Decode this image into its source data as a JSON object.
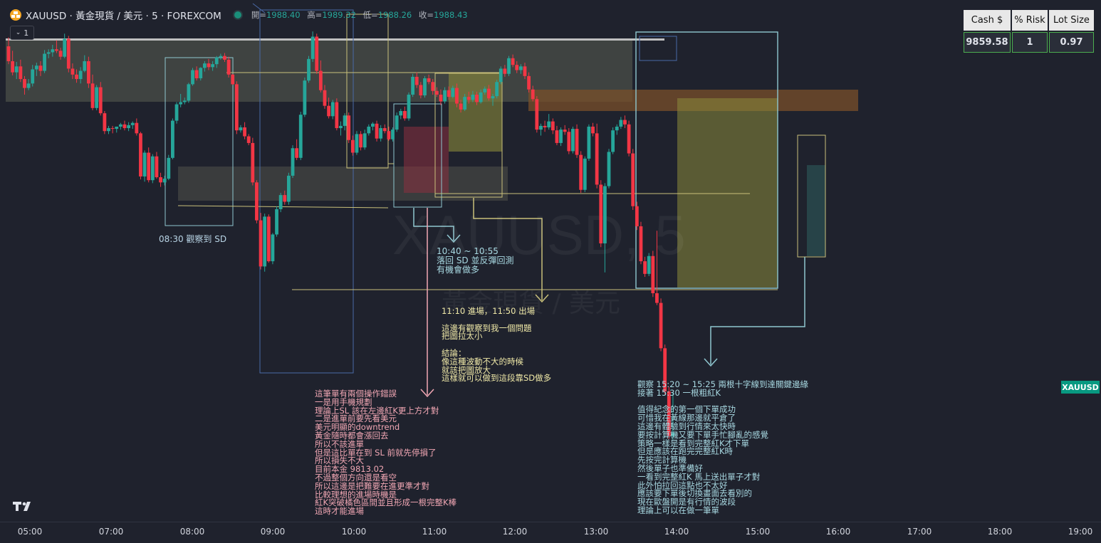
{
  "header": {
    "title": "XAUUSD · 黃金現貨 / 美元 · 5 · FOREXCOM",
    "open_label": "開=",
    "open_value": "1988.40",
    "high_label": "高=",
    "high_value": "1989.32",
    "low_label": "低=",
    "low_value": "1988.26",
    "close_label": "收=",
    "close_value": "1988.43",
    "collapse_badge": "1"
  },
  "risk_table": {
    "headers": [
      "Cash $",
      "% Risk",
      "Lot Size"
    ],
    "values": [
      "9859.58",
      "1",
      "0.97"
    ]
  },
  "watermark": {
    "symbol": "XAUUSD, 5",
    "description": "黃金現貨 / 美元"
  },
  "price_tag": "XAUUSD",
  "x_axis": [
    "05:00",
    "07:00",
    "08:00",
    "09:00",
    "10:00",
    "11:00",
    "12:00",
    "13:00",
    "14:00",
    "15:00",
    "16:00",
    "17:00",
    "18:00",
    "19:00"
  ],
  "annotations": {
    "a0830": "08:30 觀察到 SD",
    "a1040": "10:40 ~ 10:55\n落回 SD 並反彈回測\n有機會做多",
    "a1110": "11:10 進場，11:50 出場\n\n這邊有觀察到我一個問題\n把圖拉太小\n\n結論：\n像這種波動不大的時候\n就該把圖放大\n這樣就可以做到這段靠SD做多",
    "mistakes": "這筆單有兩個操作錯誤\n一是用手機規劃\n理論上SL 該在左邊紅K更上方才對\n二是進單前要先看美元\n美元明顯的downtrend\n黃金隨時都會漲回去\n所以不該進單\n但是這比單在到 SL 前就先停損了\n所以損失不大\n目前本金 9813.02\n不過整個方向還是看空\n所以這邊是把難要在進更準才對\n比較理想的進場時機是\n紅K突破橘色區間並且形成一根完整K棒\n這時才能進場",
    "a1520": "觀察 15:20 ~ 15:25 兩根十字線到達關鍵邊緣\n接著 15:30 一根粗紅K\n\n值得紀念的第一個下單成功\n可惜我在黃線那邊就平倉了\n這邊有體驗到行情來太快時\n要按計算機又要下單手忙腳亂的感覺\n策略一樣是看到完整紅K才下單\n但是應該在跑完完整紅K時\n先按完計算機\n然後單子也準備好\n一看到完整紅K 馬上送出單子才對\n此外怕拉回這點也不太好\n應該要下單後切換畫面去看別的\n現在歐盤開是有行情的波段\n理論上可以在做一筆單"
  },
  "colors": {
    "background": "#1f222d",
    "up": "#26a69a",
    "down": "#f23645",
    "zone_gray": "#5a5e52",
    "zone_orange": "#7a4f2a",
    "zone_yellow": "#8a8a3a",
    "zone_red": "#8a3040",
    "box_blue": "#4a6aa8",
    "box_cyan": "#8fc7d0",
    "line_yellow": "#c9c07a"
  },
  "candles": [
    [
      1997.6,
      1998.8,
      1995.2,
      1995.6
    ],
    [
      1995.6,
      1997.0,
      1993.7,
      1994.1
    ],
    [
      1994.1,
      1995.5,
      1993.2,
      1994.9
    ],
    [
      1994.9,
      1995.8,
      1992.8,
      1993.2
    ],
    [
      1993.2,
      1993.6,
      1991.1,
      1992.0
    ],
    [
      1992.0,
      1993.2,
      1991.7,
      1992.6
    ],
    [
      1992.6,
      1995.1,
      1992.2,
      1994.5
    ],
    [
      1994.5,
      1995.4,
      1993.6,
      1995.0
    ],
    [
      1995.0,
      1995.6,
      1993.6,
      1994.3
    ],
    [
      1994.3,
      1997.1,
      1994.0,
      1996.6
    ],
    [
      1996.6,
      1997.2,
      1996.0,
      1996.8
    ],
    [
      1996.8,
      1997.8,
      1996.2,
      1997.2
    ],
    [
      1997.2,
      1998.4,
      1996.7,
      1997.0
    ],
    [
      1997.0,
      1997.4,
      1995.8,
      1996.2
    ],
    [
      1996.2,
      1999.3,
      1996.0,
      1998.6
    ],
    [
      1998.6,
      1999.0,
      1994.1,
      1994.6
    ],
    [
      1994.6,
      1995.3,
      1993.2,
      1993.8
    ],
    [
      1993.8,
      1994.5,
      1992.7,
      1993.2
    ],
    [
      1993.2,
      1994.8,
      1992.6,
      1994.3
    ],
    [
      1994.3,
      1996.4,
      1994.1,
      1995.6
    ],
    [
      1995.6,
      1996.2,
      1992.0,
      1992.6
    ],
    [
      1992.6,
      1993.8,
      1989.0,
      1989.3
    ],
    [
      1989.3,
      1992.4,
      1989.0,
      1992.1
    ],
    [
      1992.1,
      1992.8,
      1988.3,
      1988.6
    ],
    [
      1988.6,
      1988.9,
      1985.8,
      1986.2
    ],
    [
      1986.2,
      1986.9,
      1985.8,
      1986.6
    ],
    [
      1986.6,
      1986.9,
      1985.9,
      1986.5
    ],
    [
      1986.5,
      1986.8,
      1986.0,
      1986.8
    ],
    [
      1986.8,
      1987.3,
      1986.4,
      1987.1
    ],
    [
      1987.1,
      1987.6,
      1986.3,
      1986.6
    ],
    [
      1986.6,
      1987.4,
      1986.2,
      1987.0
    ],
    [
      1987.0,
      1987.5,
      1986.5,
      1987.3
    ],
    [
      1987.3,
      1987.9,
      1985.6,
      1985.9
    ],
    [
      1985.9,
      1986.1,
      1979.7,
      1980.1
    ],
    [
      1980.1,
      1983.6,
      1979.4,
      1983.3
    ],
    [
      1983.3,
      1984.0,
      1979.3,
      1979.6
    ],
    [
      1979.6,
      1983.1,
      1979.2,
      1982.8
    ],
    [
      1982.8,
      1983.4,
      1979.8,
      1980.0
    ],
    [
      1980.0,
      1980.6,
      1978.7,
      1979.3
    ],
    [
      1979.3,
      1980.2,
      1978.9,
      1979.8
    ],
    [
      1979.8,
      1983.0,
      1979.6,
      1982.6
    ],
    [
      1982.6,
      1987.9,
      1982.4,
      1987.6
    ],
    [
      1987.6,
      1990.1,
      1987.2,
      1989.8
    ],
    [
      1989.8,
      1991.2,
      1989.4,
      1990.1
    ],
    [
      1990.1,
      1990.7,
      1989.8,
      1990.3
    ],
    [
      1990.3,
      1992.7,
      1990.0,
      1992.5
    ],
    [
      1992.5,
      1994.7,
      1992.3,
      1994.4
    ],
    [
      1994.4,
      1994.9,
      1993.0,
      1993.3
    ],
    [
      1993.3,
      1994.8,
      1993.0,
      1994.7
    ],
    [
      1994.7,
      1995.6,
      1994.2,
      1995.3
    ],
    [
      1995.3,
      1995.9,
      1994.4,
      1994.8
    ],
    [
      1994.8,
      1995.6,
      1994.3,
      1995.2
    ],
    [
      1995.2,
      1996.3,
      1994.7,
      1996.1
    ],
    [
      1996.1,
      1996.6,
      1995.8,
      1996.3
    ],
    [
      1996.3,
      1996.7,
      1995.5,
      1995.8
    ],
    [
      1995.8,
      1996.2,
      1993.4,
      1993.8
    ],
    [
      1993.8,
      1993.9,
      1992.4,
      1992.5
    ],
    [
      1992.5,
      1992.9,
      1985.8,
      1986.3
    ],
    [
      1986.3,
      1987.0,
      1986.0,
      1986.7
    ],
    [
      1986.7,
      1987.4,
      1985.1,
      1985.5
    ],
    [
      1985.5,
      1985.8,
      1984.3,
      1984.6
    ],
    [
      1984.6,
      1985.3,
      1978.9,
      1979.3
    ],
    [
      1979.3,
      1979.6,
      1973.8,
      1974.2
    ],
    [
      1974.2,
      1975.2,
      1967.6,
      1968.0
    ],
    [
      1968.0,
      1975.1,
      1967.3,
      1974.7
    ],
    [
      1974.7,
      1975.0,
      1968.5,
      1968.7
    ],
    [
      1968.7,
      1972.5,
      1968.3,
      1972.3
    ],
    [
      1972.3,
      1976.1,
      1972.0,
      1975.7
    ],
    [
      1975.7,
      1977.9,
      1975.3,
      1977.6
    ],
    [
      1977.6,
      1978.2,
      1976.3,
      1976.7
    ],
    [
      1976.7,
      1980.6,
      1976.3,
      1980.2
    ],
    [
      1980.2,
      1984.3,
      1979.9,
      1983.9
    ],
    [
      1983.9,
      1985.1,
      1982.3,
      1982.6
    ],
    [
      1982.6,
      1988.8,
      1982.3,
      1988.4
    ],
    [
      1988.4,
      1993.4,
      1988.1,
      1993.0
    ],
    [
      1993.0,
      1996.3,
      1992.7,
      1995.9
    ],
    [
      1995.9,
      1999.6,
      1995.5,
      1998.9
    ],
    [
      1998.9,
      1999.3,
      1993.9,
      1994.3
    ],
    [
      1994.3,
      1995.7,
      1991.4,
      1991.7
    ],
    [
      1991.7,
      1992.4,
      1989.2,
      1989.6
    ],
    [
      1989.6,
      1990.7,
      1987.9,
      1988.2
    ],
    [
      1988.2,
      1990.4,
      1987.8,
      1990.1
    ],
    [
      1990.1,
      1990.6,
      1986.3,
      1986.6
    ],
    [
      1986.6,
      1987.5,
      1985.6,
      1986.9
    ],
    [
      1986.9,
      1988.6,
      1986.3,
      1988.3
    ],
    [
      1988.3,
      1988.7,
      1984.6,
      1985.0
    ],
    [
      1985.0,
      1985.6,
      1982.9,
      1983.3
    ],
    [
      1983.3,
      1986.2,
      1983.0,
      1985.8
    ],
    [
      1985.8,
      1986.2,
      1983.6,
      1984.0
    ],
    [
      1984.0,
      1986.4,
      1983.7,
      1985.9
    ],
    [
      1985.9,
      1987.1,
      1985.6,
      1986.8
    ],
    [
      1986.8,
      1987.4,
      1986.3,
      1987.2
    ],
    [
      1987.2,
      1987.6,
      1984.8,
      1985.2
    ],
    [
      1985.2,
      1987.0,
      1984.8,
      1986.6
    ],
    [
      1986.6,
      1987.1,
      1985.9,
      1986.2
    ],
    [
      1986.2,
      1986.8,
      1984.9,
      1985.1
    ],
    [
      1985.1,
      1986.7,
      1984.8,
      1986.4
    ],
    [
      1986.4,
      1988.7,
      1986.1,
      1988.3
    ],
    [
      1988.3,
      1989.2,
      1987.8,
      1988.9
    ],
    [
      1988.9,
      1989.5,
      1987.6,
      1987.9
    ],
    [
      1987.9,
      1991.4,
      1987.6,
      1991.1
    ],
    [
      1991.1,
      1993.9,
      1990.8,
      1993.5
    ],
    [
      1993.5,
      1994.1,
      1992.0,
      1992.4
    ],
    [
      1992.4,
      1992.8,
      1990.6,
      1991.0
    ],
    [
      1991.0,
      1993.6,
      1990.7,
      1993.3
    ],
    [
      1993.3,
      1993.8,
      1992.5,
      1992.8
    ],
    [
      1992.8,
      1993.2,
      1991.1,
      1991.6
    ],
    [
      1991.6,
      1992.1,
      1990.8,
      1991.1
    ],
    [
      1991.1,
      1991.8,
      1989.7,
      1990.2
    ],
    [
      1990.2,
      1992.1,
      1989.9,
      1991.7
    ],
    [
      1991.7,
      1992.2,
      1990.4,
      1990.8
    ],
    [
      1990.8,
      1992.3,
      1990.6,
      1992.0
    ],
    [
      1992.0,
      1992.6,
      1989.4,
      1989.9
    ],
    [
      1989.9,
      1990.4,
      1988.7,
      1989.1
    ],
    [
      1989.1,
      1991.2,
      1988.9,
      1990.8
    ],
    [
      1990.8,
      1991.5,
      1989.9,
      1990.4
    ],
    [
      1990.4,
      1991.6,
      1990.1,
      1991.1
    ],
    [
      1991.1,
      1991.5,
      1989.7,
      1990.1
    ],
    [
      1990.1,
      1991.8,
      1989.9,
      1991.4
    ],
    [
      1991.4,
      1992.2,
      1991.1,
      1991.9
    ],
    [
      1991.9,
      1992.4,
      1990.3,
      1990.6
    ],
    [
      1990.6,
      1991.2,
      1989.6,
      1990.9
    ],
    [
      1990.9,
      1993.1,
      1990.6,
      1992.8
    ],
    [
      1992.8,
      1994.9,
      1992.5,
      1994.6
    ],
    [
      1994.6,
      1995.1,
      1993.5,
      1993.9
    ],
    [
      1993.9,
      1996.3,
      1993.6,
      1996.0
    ],
    [
      1996.0,
      1996.5,
      1994.8,
      1995.1
    ],
    [
      1995.1,
      1995.6,
      1994.0,
      1994.4
    ],
    [
      1994.4,
      1995.2,
      1993.9,
      1994.9
    ],
    [
      1994.9,
      1995.4,
      1993.2,
      1993.6
    ],
    [
      1993.6,
      1994.1,
      1991.4,
      1991.8
    ],
    [
      1991.8,
      1992.3,
      1990.2,
      1990.5
    ],
    [
      1990.5,
      1990.9,
      1986.0,
      1986.4
    ],
    [
      1986.4,
      1987.2,
      1985.6,
      1986.9
    ],
    [
      1986.9,
      1987.6,
      1986.1,
      1986.7
    ],
    [
      1986.7,
      1988.5,
      1986.4,
      1987.5
    ],
    [
      1987.5,
      1987.9,
      1985.8,
      1986.3
    ],
    [
      1986.3,
      1986.9,
      1984.3,
      1984.6
    ],
    [
      1984.6,
      1986.7,
      1984.2,
      1986.4
    ],
    [
      1986.4,
      1987.0,
      1985.7,
      1986.1
    ],
    [
      1986.1,
      1986.6,
      1983.1,
      1983.5
    ],
    [
      1983.5,
      1986.8,
      1983.2,
      1986.5
    ],
    [
      1986.5,
      1987.1,
      1982.6,
      1983.0
    ],
    [
      1983.0,
      1983.5,
      1977.9,
      1978.3
    ],
    [
      1978.3,
      1982.8,
      1978.0,
      1982.5
    ],
    [
      1982.5,
      1987.1,
      1982.2,
      1986.8
    ],
    [
      1986.8,
      1987.3,
      1985.5,
      1985.9
    ],
    [
      1985.9,
      1987.2,
      1978.5,
      1979.0
    ],
    [
      1979.0,
      1979.6,
      1970.6,
      1971.1
    ],
    [
      1971.1,
      1979.2,
      1967.2,
      1978.8
    ],
    [
      1978.8,
      1983.8,
      1978.5,
      1983.4
    ],
    [
      1983.4,
      1986.7,
      1983.1,
      1986.3
    ],
    [
      1986.3,
      1987.1,
      1985.7,
      1986.8
    ],
    [
      1986.8,
      1988.1,
      1986.5,
      1987.7
    ],
    [
      1987.7,
      1988.3,
      1986.6,
      1987.1
    ],
    [
      1987.1,
      1987.6,
      1982.8,
      1983.2
    ],
    [
      1983.2,
      1983.8,
      1975.6,
      1976.1
    ],
    [
      1976.1,
      1976.7,
      1972.9,
      1973.4
    ],
    [
      1973.4,
      1974.0,
      1968.3,
      1968.7
    ],
    [
      1968.7,
      1969.3,
      1966.6,
      1967.0
    ],
    [
      1967.0,
      1969.8,
      1966.7,
      1969.4
    ],
    [
      1969.4,
      1970.1,
      1963.9,
      1964.4
    ],
    [
      1964.4,
      1972.8,
      1962.8,
      1963.1
    ],
    [
      1963.1,
      1963.7,
      1956.6,
      1957.0
    ],
    [
      1957.0,
      1957.5,
      1950.8,
      1951.2
    ],
    [
      1951.2,
      1951.8,
      1944.8,
      1945.2
    ],
    [
      1945.2,
      1951.1,
      1944.7,
      1945.6
    ]
  ]
}
